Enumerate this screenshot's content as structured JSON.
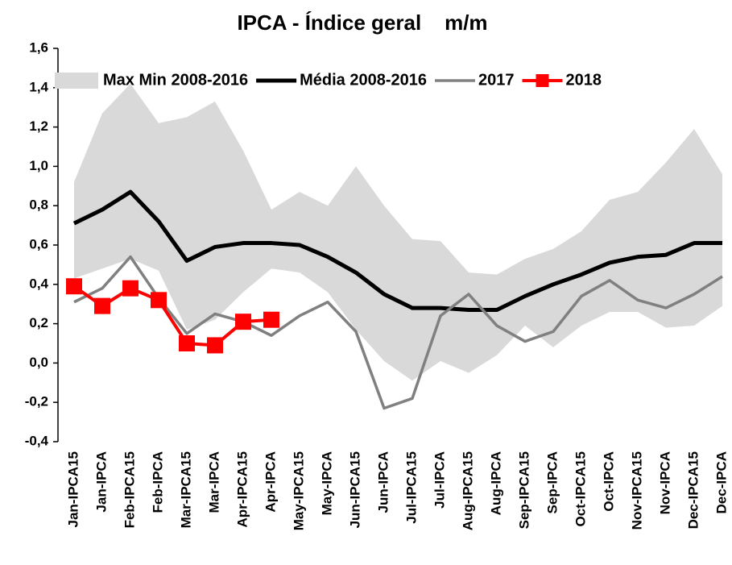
{
  "chart_data": {
    "type": "line",
    "title": "IPCA - Índice geral    m/m",
    "categories": [
      "Jan-IPCA15",
      "Jan-IPCA",
      "Feb-IPCA15",
      "Feb-IPCA",
      "Mar-IPCA15",
      "Mar-IPCA",
      "Apr-IPCA15",
      "Apr-IPCA",
      "May-IPCA15",
      "May-IPCA",
      "Jun-IPCA15",
      "Jun-IPCA",
      "Jul-IPCA15",
      "Jul-IPCA",
      "Aug-IPCA15",
      "Aug-IPCA",
      "Sep-IPCA15",
      "Sep-IPCA",
      "Oct-IPCA15",
      "Oct-IPCA",
      "Nov-IPCA15",
      "Nov-IPCA",
      "Dec-IPCA15",
      "Dec-IPCA"
    ],
    "series": [
      {
        "name": "Max Min 2008-2016",
        "kind": "band",
        "color": "#d9d9d9",
        "upper": [
          0.92,
          1.27,
          1.42,
          1.22,
          1.25,
          1.33,
          1.08,
          0.78,
          0.87,
          0.8,
          1.0,
          0.8,
          0.63,
          0.62,
          0.46,
          0.45,
          0.53,
          0.58,
          0.67,
          0.83,
          0.87,
          1.02,
          1.19,
          0.96
        ],
        "lower": [
          0.43,
          0.48,
          0.53,
          0.47,
          0.17,
          0.22,
          0.36,
          0.48,
          0.46,
          0.36,
          0.17,
          0.01,
          -0.09,
          0.01,
          -0.05,
          0.04,
          0.19,
          0.08,
          0.19,
          0.26,
          0.26,
          0.18,
          0.19,
          0.29
        ]
      },
      {
        "name": "Média 2008-2016",
        "color": "#000000",
        "width": 5,
        "values": [
          0.71,
          0.78,
          0.87,
          0.72,
          0.52,
          0.59,
          0.61,
          0.61,
          0.6,
          0.54,
          0.46,
          0.35,
          0.28,
          0.28,
          0.27,
          0.27,
          0.34,
          0.4,
          0.45,
          0.51,
          0.54,
          0.55,
          0.61,
          0.61
        ]
      },
      {
        "name": "2017",
        "color": "#808080",
        "width": 3.5,
        "values": [
          0.31,
          0.38,
          0.54,
          0.33,
          0.15,
          0.25,
          0.21,
          0.14,
          0.24,
          0.31,
          0.16,
          -0.23,
          -0.18,
          0.24,
          0.35,
          0.19,
          0.11,
          0.16,
          0.34,
          0.42,
          0.32,
          0.28,
          0.35,
          0.44
        ]
      },
      {
        "name": "2018",
        "color": "#ff0000",
        "width": 4,
        "marker": "square",
        "values": [
          0.39,
          0.29,
          0.38,
          0.32,
          0.1,
          0.09,
          0.21,
          0.22,
          null,
          null,
          null,
          null,
          null,
          null,
          null,
          null,
          null,
          null,
          null,
          null,
          null,
          null,
          null,
          null
        ]
      }
    ],
    "ylim": [
      -0.4,
      1.6
    ],
    "yticks": [
      {
        "value": -0.4,
        "label": "-0,4"
      },
      {
        "value": -0.2,
        "label": "-0,2"
      },
      {
        "value": 0,
        "label": "0,0"
      },
      {
        "value": 0.2,
        "label": "0,2"
      },
      {
        "value": 0.4,
        "label": "0,4"
      },
      {
        "value": 0.6,
        "label": "0,6"
      },
      {
        "value": 0.8,
        "label": "0,8"
      },
      {
        "value": 1.0,
        "label": "1,0"
      },
      {
        "value": 1.2,
        "label": "1,2"
      },
      {
        "value": 1.4,
        "label": "1,4"
      },
      {
        "value": 1.6,
        "label": "1,6"
      }
    ],
    "negative_tick_color": "#ff0000",
    "legend": "top"
  }
}
